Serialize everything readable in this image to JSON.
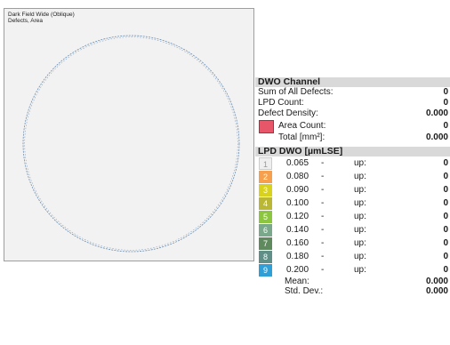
{
  "map": {
    "title_line1": "Dark Field Wide (Oblique)",
    "title_line2": "Defects, Area"
  },
  "dwo_channel": {
    "header": "DWO Channel",
    "sum_label": "Sum of All Defects:",
    "sum_value": "0",
    "lpd_count_label": "LPD Count:",
    "lpd_count_value": "0",
    "density_label": "Defect Density:",
    "density_value": "0.000",
    "area_count_label": "Area Count:",
    "area_count_value": "0",
    "total_label": "Total [mm²]:",
    "total_value": "0.000",
    "area_color": "#e8566a"
  },
  "lpd": {
    "header": "LPD DWO [µmLSE]",
    "rows": [
      {
        "num": "1",
        "threshold": "0.065",
        "dash": "-",
        "up": "up:",
        "value": "0",
        "color": "#efefef"
      },
      {
        "num": "2",
        "threshold": "0.080",
        "dash": "-",
        "up": "up:",
        "value": "0",
        "color": "#f6a04d"
      },
      {
        "num": "3",
        "threshold": "0.090",
        "dash": "-",
        "up": "up:",
        "value": "0",
        "color": "#d8d21c"
      },
      {
        "num": "4",
        "threshold": "0.100",
        "dash": "-",
        "up": "up:",
        "value": "0",
        "color": "#b9b733"
      },
      {
        "num": "5",
        "threshold": "0.120",
        "dash": "-",
        "up": "up:",
        "value": "0",
        "color": "#8cc63f"
      },
      {
        "num": "6",
        "threshold": "0.140",
        "dash": "-",
        "up": "up:",
        "value": "0",
        "color": "#79a98a"
      },
      {
        "num": "7",
        "threshold": "0.160",
        "dash": "-",
        "up": "up:",
        "value": "0",
        "color": "#5e8a5d"
      },
      {
        "num": "8",
        "threshold": "0.180",
        "dash": "-",
        "up": "up:",
        "value": "0",
        "color": "#5f8f86"
      },
      {
        "num": "9",
        "threshold": "0.200",
        "dash": "-",
        "up": "up:",
        "value": "0",
        "color": "#2f9fd8"
      }
    ],
    "mean_label": "Mean:",
    "mean_value": "0.000",
    "stddev_label": "Std. Dev.:",
    "stddev_value": "0.000"
  }
}
